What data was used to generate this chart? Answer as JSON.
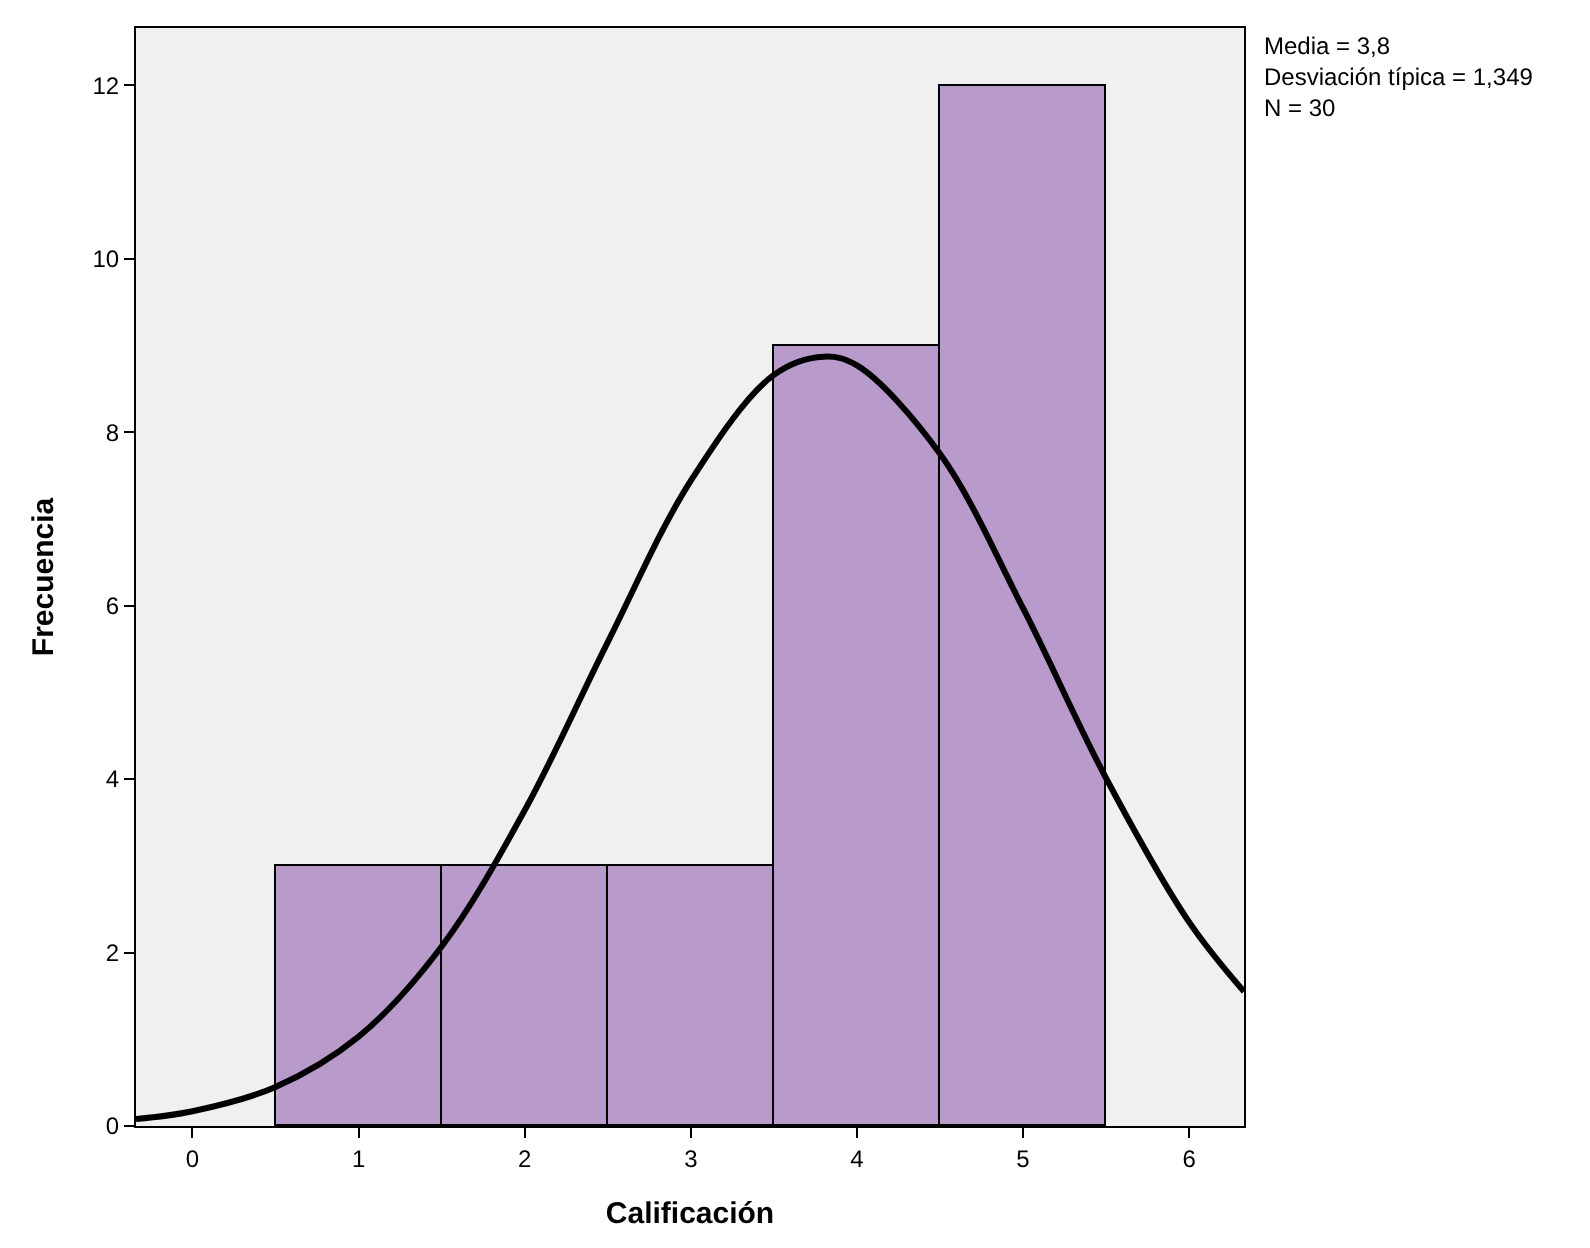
{
  "chart_data": {
    "type": "histogram",
    "xlabel": "Calificación",
    "ylabel": "Frecuencia",
    "bins": [
      0.5,
      1.5,
      2.5,
      3.5,
      4.5,
      5.5
    ],
    "values": [
      3,
      3,
      3,
      9,
      12
    ],
    "color": "#b89bcb",
    "xlim": [
      -0.34,
      6.33
    ],
    "xticks": [
      0,
      1,
      2,
      3,
      4,
      5,
      6
    ],
    "ylim": [
      0,
      12.66
    ],
    "yticks": [
      0,
      2,
      4,
      6,
      8,
      10,
      12
    ],
    "grid": false,
    "series": [
      {
        "type": "line",
        "color": "#000000",
        "x": [
          -0.34,
          0,
          0.5,
          1,
          1.5,
          2,
          2.5,
          3,
          3.5,
          3.8,
          4,
          4.5,
          5,
          5.5,
          6,
          6.33
        ],
        "values": [
          0.08,
          0.17,
          0.45,
          1.03,
          2.07,
          3.64,
          5.58,
          7.44,
          8.66,
          8.87,
          8.77,
          7.75,
          5.97,
          4.01,
          2.35,
          1.55
        ]
      }
    ],
    "annotations": [
      "Media = 3,8\nDesviación típica = 1,349\nN = 30"
    ]
  }
}
